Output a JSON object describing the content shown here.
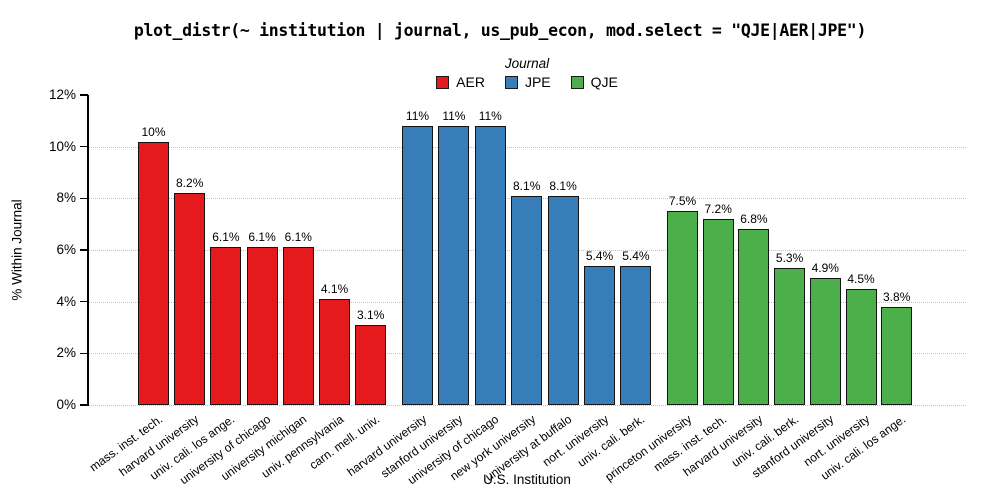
{
  "title": "plot_distr(~ institution | journal, us_pub_econ, mod.select = \"QJE|AER|JPE\")",
  "legend": {
    "title": "Journal",
    "entries": [
      {
        "label": "AER",
        "color": "#e41a1c"
      },
      {
        "label": "JPE",
        "color": "#377eb8"
      },
      {
        "label": "QJE",
        "color": "#4daf4a"
      }
    ]
  },
  "colors": {
    "aer": "#e41a1c",
    "jpe": "#377eb8",
    "qje": "#4daf4a",
    "grid": "#c3c3c3",
    "axis": "#000000",
    "bar_border": "#141414"
  },
  "chart_data": {
    "type": "bar",
    "title": "plot_distr(~ institution | journal, us_pub_econ, mod.select = \"QJE|AER|JPE\")",
    "xlabel": "U.S. Institution",
    "ylabel": "% Within Journal",
    "ylim": [
      0,
      12
    ],
    "yticks": [
      "0%",
      "2%",
      "4%",
      "6%",
      "8%",
      "10%",
      "12%"
    ],
    "gridline_values": [
      0,
      2,
      4,
      6,
      8,
      10
    ],
    "grid_style": "dotted horizontal",
    "legend_position": "top center",
    "groups": [
      {
        "journal": "AER",
        "color": "#e41a1c",
        "bars": [
          {
            "institution": "mass. inst. tech.",
            "value": 10.2,
            "label": "10%"
          },
          {
            "institution": "harvard university",
            "value": 8.2,
            "label": "8.2%"
          },
          {
            "institution": "univ. cali. los ange.",
            "value": 6.1,
            "label": "6.1%"
          },
          {
            "institution": "university of chicago",
            "value": 6.1,
            "label": "6.1%"
          },
          {
            "institution": "university michigan",
            "value": 6.1,
            "label": "6.1%"
          },
          {
            "institution": "univ. pennsylvania",
            "value": 4.1,
            "label": "4.1%"
          },
          {
            "institution": "carn. mell. univ.",
            "value": 3.1,
            "label": "3.1%"
          }
        ]
      },
      {
        "journal": "JPE",
        "color": "#377eb8",
        "bars": [
          {
            "institution": "harvard university",
            "value": 10.8,
            "label": "11%"
          },
          {
            "institution": "stanford university",
            "value": 10.8,
            "label": "11%"
          },
          {
            "institution": "university of chicago",
            "value": 10.8,
            "label": "11%"
          },
          {
            "institution": "new york university",
            "value": 8.1,
            "label": "8.1%"
          },
          {
            "institution": "university at buffalo",
            "value": 8.1,
            "label": "8.1%"
          },
          {
            "institution": "nort. university",
            "value": 5.4,
            "label": "5.4%"
          },
          {
            "institution": "univ. cali. berk.",
            "value": 5.4,
            "label": "5.4%"
          }
        ]
      },
      {
        "journal": "QJE",
        "color": "#4daf4a",
        "bars": [
          {
            "institution": "princeton university",
            "value": 7.5,
            "label": "7.5%"
          },
          {
            "institution": "mass. inst. tech.",
            "value": 7.2,
            "label": "7.2%"
          },
          {
            "institution": "harvard university",
            "value": 6.8,
            "label": "6.8%"
          },
          {
            "institution": "univ. cali. berk.",
            "value": 5.3,
            "label": "5.3%"
          },
          {
            "institution": "stanford university",
            "value": 4.9,
            "label": "4.9%"
          },
          {
            "institution": "nort. university",
            "value": 4.5,
            "label": "4.5%"
          },
          {
            "institution": "univ. cali. los ange.",
            "value": 3.8,
            "label": "3.8%"
          }
        ]
      }
    ]
  }
}
